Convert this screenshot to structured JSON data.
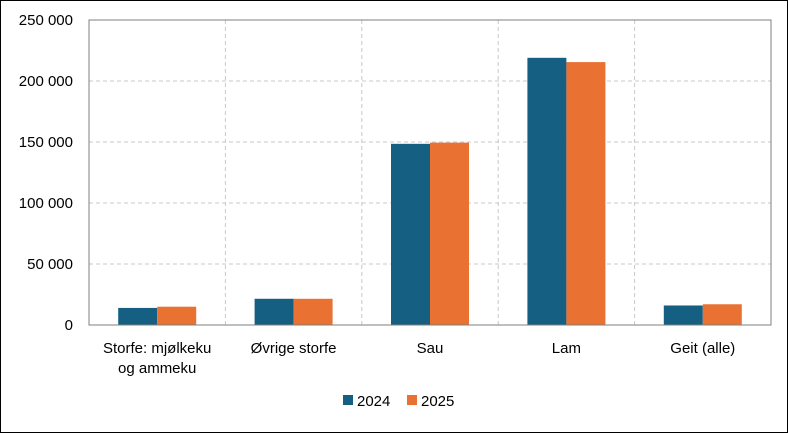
{
  "chart_data": {
    "type": "bar",
    "title": "",
    "xlabel": "",
    "ylabel": "",
    "categories": [
      [
        "Storfe: mjølkeku",
        "og ammeku"
      ],
      [
        "Øvrige storfe"
      ],
      [
        "Sau"
      ],
      [
        "Lam"
      ],
      [
        "Geit (alle)"
      ]
    ],
    "series": [
      {
        "name": "2024",
        "color": "#156082",
        "values": [
          14000,
          21500,
          148500,
          219000,
          16000
        ]
      },
      {
        "name": "2025",
        "color": "#E97132",
        "values": [
          15000,
          21500,
          149500,
          215500,
          17000
        ]
      }
    ],
    "ylim": [
      0,
      250000
    ],
    "yticks": [
      0,
      50000,
      100000,
      150000,
      200000,
      250000
    ],
    "ytick_labels": [
      "0",
      "50 000",
      "100 000",
      "150 000",
      "200 000",
      "250 000"
    ],
    "grid": "dashed",
    "legend_position": "bottom"
  }
}
